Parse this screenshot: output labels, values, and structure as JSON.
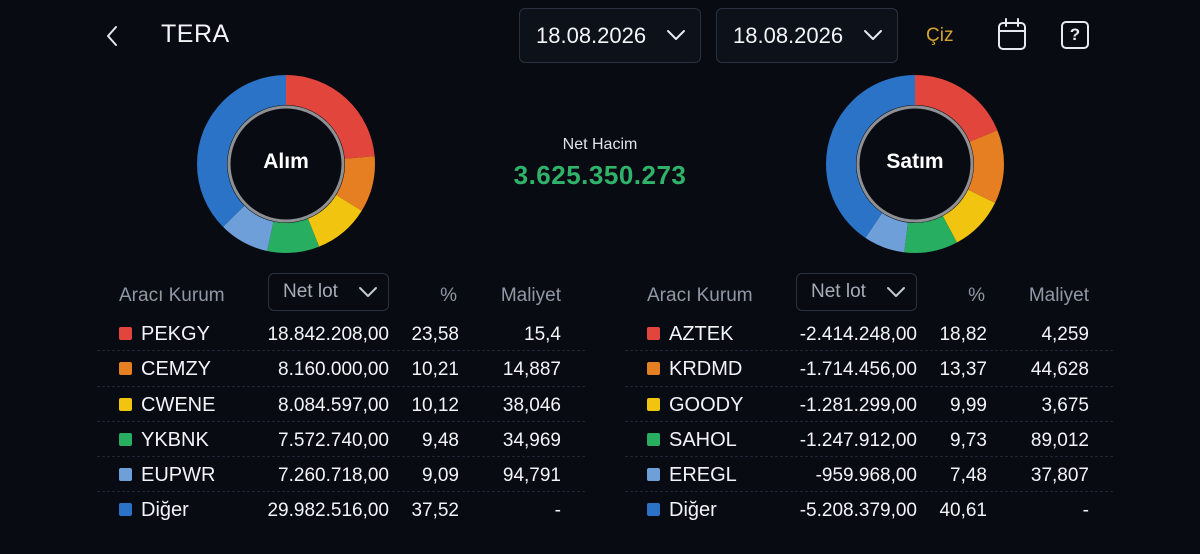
{
  "header": {
    "title": "TERA",
    "start_date": "18.08.2026",
    "end_date": "18.08.2026",
    "draw_label": "Çiz",
    "icons": {
      "back": "chevron-left-icon",
      "calendar": "calendar-icon",
      "help": "question-icon",
      "dropdown": "chevron-down-icon"
    },
    "help_glyph": "?"
  },
  "summary": {
    "buy_label": "Alım",
    "sell_label": "Satım",
    "net_volume_label": "Net Hacim",
    "net_volume_value": "3.625.350.273",
    "net_volume_color": "#2fb36a"
  },
  "table_headers": {
    "broker": "Aracı Kurum",
    "sort_select": "Net lot",
    "percent": "%",
    "cost": "Maliyet"
  },
  "colors": [
    "#e2453c",
    "#e67e22",
    "#f1c40f",
    "#27ae60",
    "#6f9fd8",
    "#2a73c6"
  ],
  "buy": {
    "rows": [
      {
        "name": "PEKGY",
        "lot": "18.842.208,00",
        "pct": "23,58",
        "cost": "15,4"
      },
      {
        "name": "CEMZY",
        "lot": "8.160.000,00",
        "pct": "10,21",
        "cost": "14,887"
      },
      {
        "name": "CWENE",
        "lot": "8.084.597,00",
        "pct": "10,12",
        "cost": "38,046"
      },
      {
        "name": "YKBNK",
        "lot": "7.572.740,00",
        "pct": "9,48",
        "cost": "34,969"
      },
      {
        "name": "EUPWR",
        "lot": "7.260.718,00",
        "pct": "9,09",
        "cost": "94,791"
      },
      {
        "name": "Diğer",
        "lot": "29.982.516,00",
        "pct": "37,52",
        "cost": "-"
      }
    ],
    "shares": [
      23.58,
      10.21,
      10.12,
      9.48,
      9.09,
      37.52
    ]
  },
  "sell": {
    "rows": [
      {
        "name": "AZTEK",
        "lot": "-2.414.248,00",
        "pct": "18,82",
        "cost": "4,259"
      },
      {
        "name": "KRDMD",
        "lot": "-1.714.456,00",
        "pct": "13,37",
        "cost": "44,628"
      },
      {
        "name": "GOODY",
        "lot": "-1.281.299,00",
        "pct": "9,99",
        "cost": "3,675"
      },
      {
        "name": "SAHOL",
        "lot": "-1.247.912,00",
        "pct": "9,73",
        "cost": "89,012"
      },
      {
        "name": "EREGL",
        "lot": "-959.968,00",
        "pct": "7,48",
        "cost": "37,807"
      },
      {
        "name": "Diğer",
        "lot": "-5.208.379,00",
        "pct": "40,61",
        "cost": "-"
      }
    ],
    "shares": [
      18.82,
      13.37,
      9.99,
      9.73,
      7.48,
      40.61
    ]
  }
}
